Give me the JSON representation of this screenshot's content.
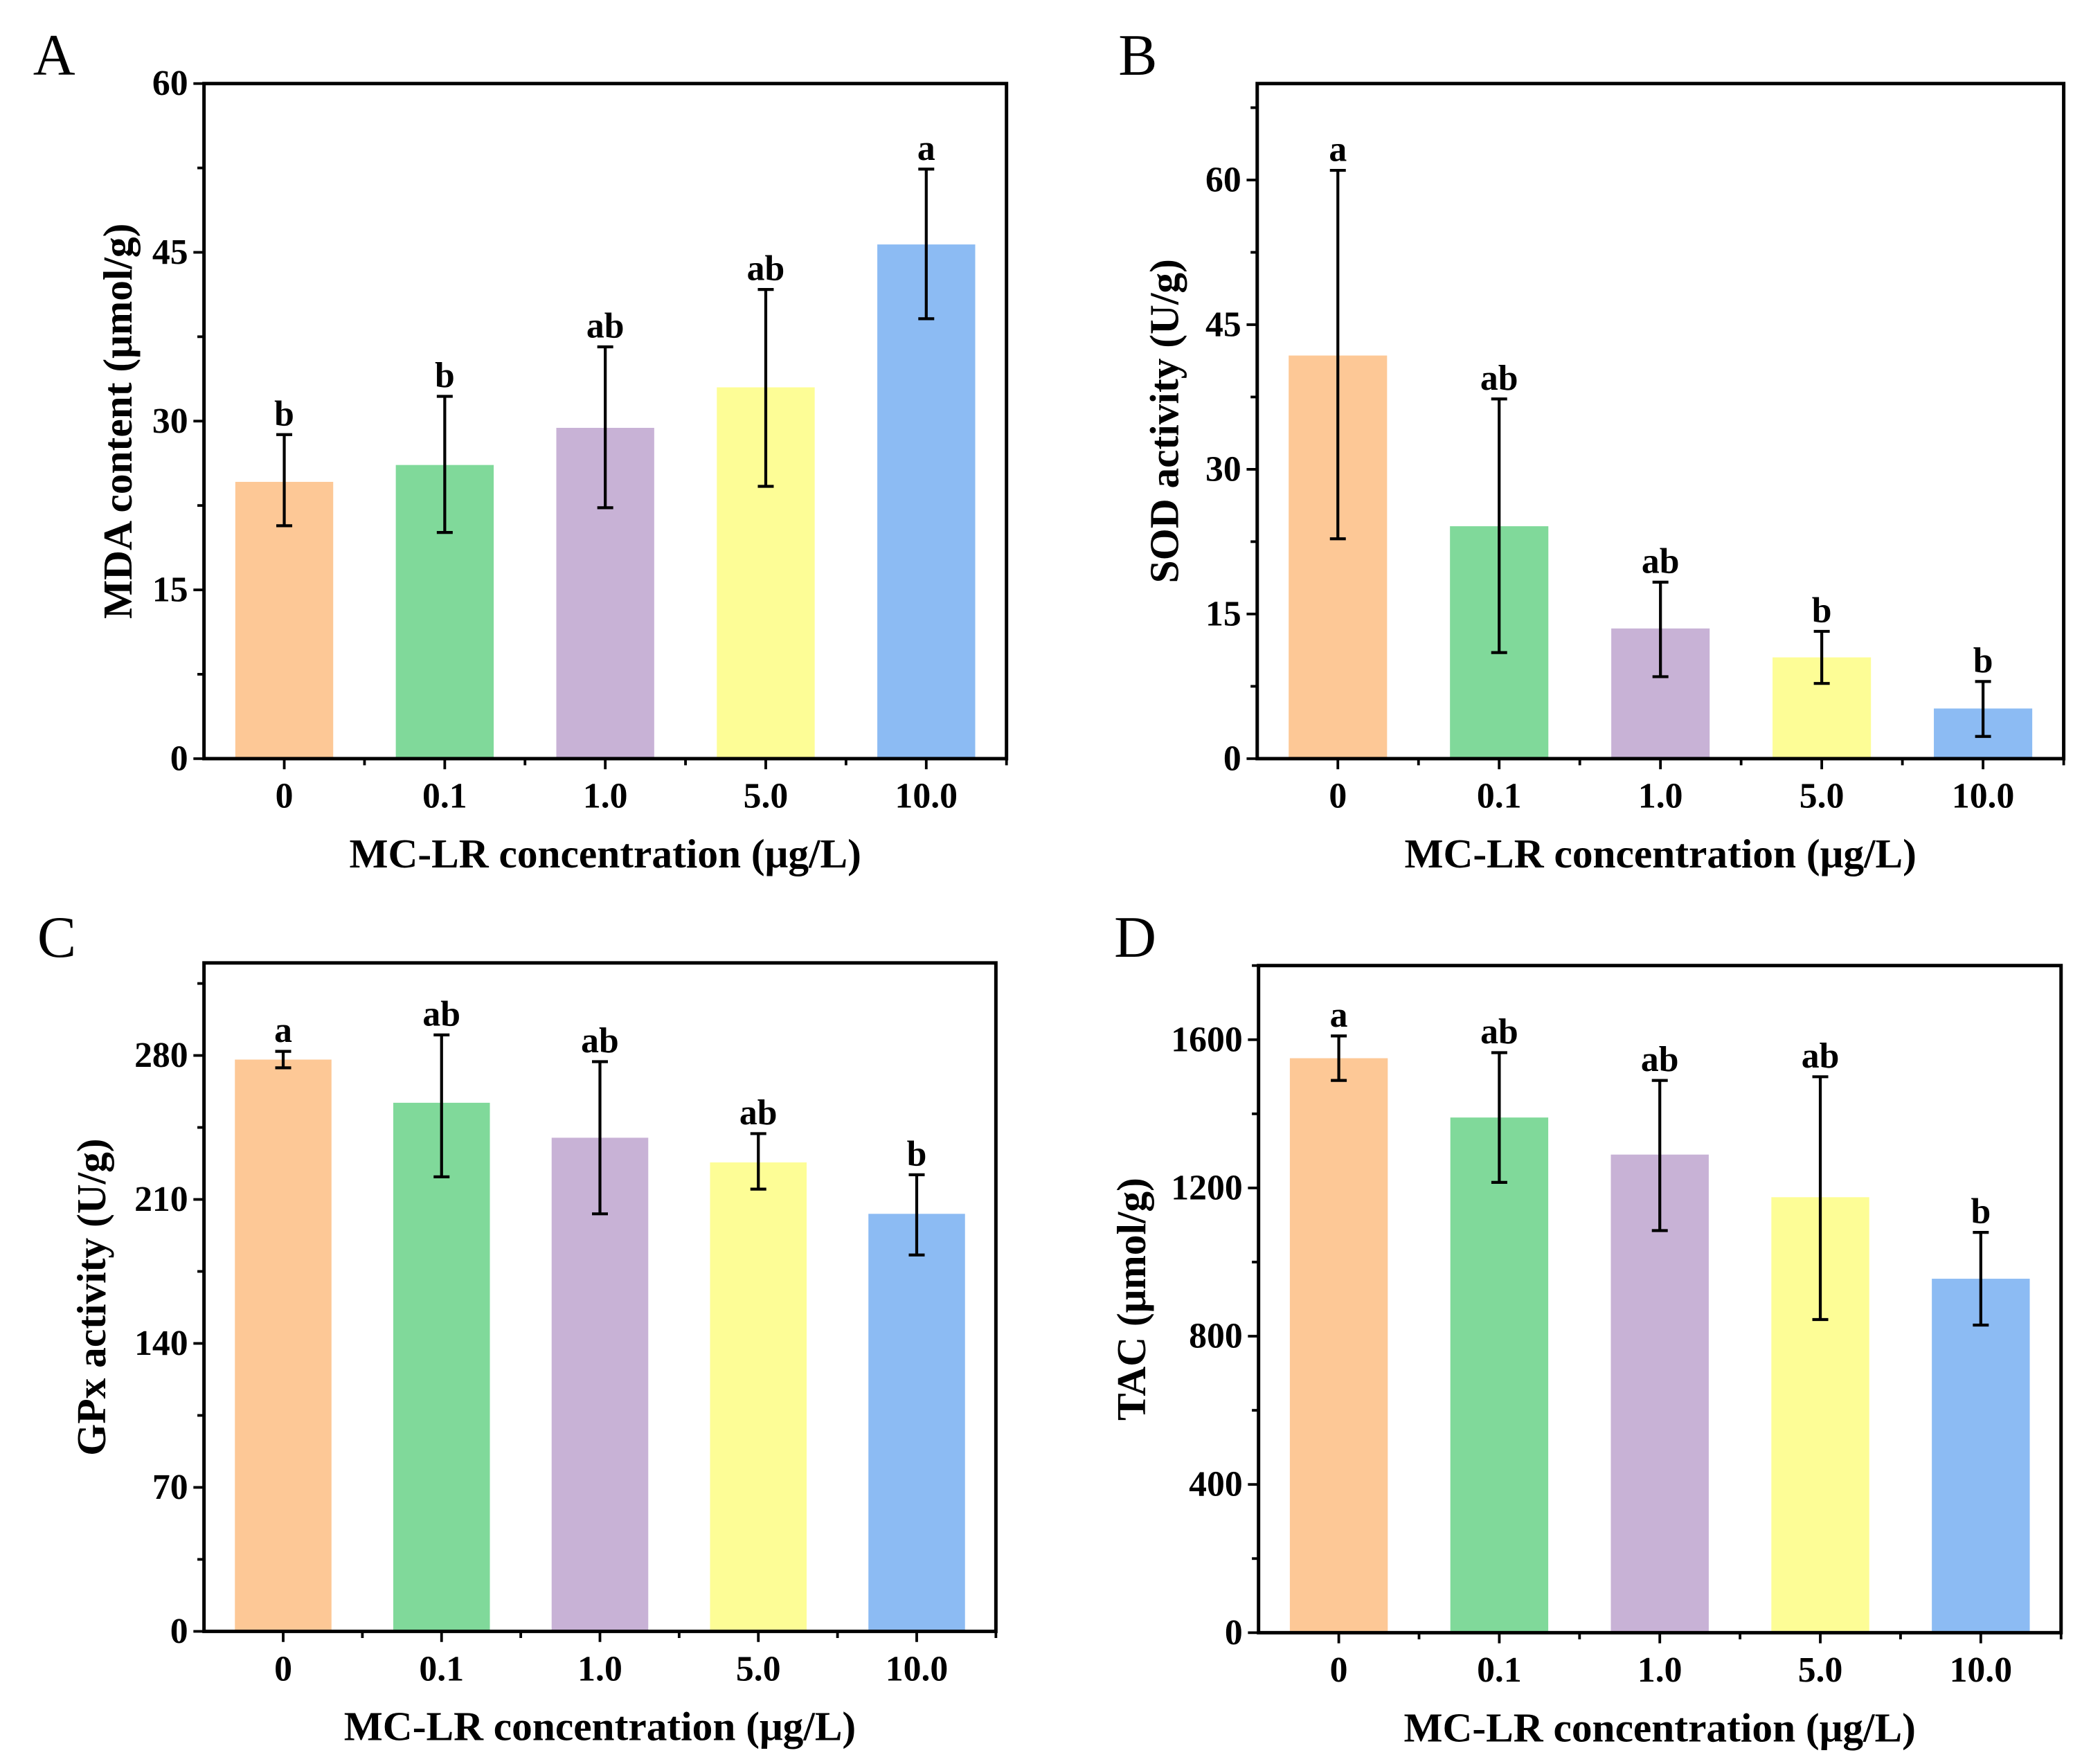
{
  "chart_data": [
    {
      "panel": "A",
      "type": "bar",
      "categories": [
        "0",
        "0.1",
        "1.0",
        "5.0",
        "10.0"
      ],
      "values": [
        24.6,
        26.1,
        29.4,
        33.0,
        45.7
      ],
      "error_low": [
        20.7,
        20.1,
        22.3,
        24.2,
        39.1
      ],
      "error_high": [
        28.8,
        32.2,
        36.6,
        41.7,
        52.4
      ],
      "significance": [
        "b",
        "b",
        "ab",
        "ab",
        "a"
      ],
      "xlabel": "MC-LR concentration (μg/L)",
      "ylabel": "MDA content (μmol/g)",
      "ylim": [
        0,
        60
      ],
      "yticks": [
        0,
        15,
        30,
        45,
        60
      ],
      "yticklabels": [
        "0",
        "15",
        "30",
        "45",
        "60"
      ]
    },
    {
      "panel": "B",
      "type": "bar",
      "categories": [
        "0",
        "0.1",
        "1.0",
        "5.0",
        "10.0"
      ],
      "values": [
        41.8,
        24.1,
        13.5,
        10.5,
        5.2
      ],
      "error_low": [
        22.8,
        11.0,
        8.5,
        7.8,
        2.3
      ],
      "error_high": [
        61.0,
        37.3,
        18.3,
        13.2,
        8.0
      ],
      "significance": [
        "a",
        "ab",
        "ab",
        "b",
        "b"
      ],
      "xlabel": "MC-LR concentration (μg/L)",
      "ylabel": "SOD activity (U/g)",
      "ylim": [
        0,
        70
      ],
      "yticks": [
        0,
        15,
        30,
        45,
        60
      ],
      "yticklabels": [
        "0",
        "15",
        "30",
        "45",
        "60"
      ]
    },
    {
      "panel": "C",
      "type": "bar",
      "categories": [
        "0",
        "0.1",
        "1.0",
        "5.0",
        "10.0"
      ],
      "values": [
        278,
        257,
        240,
        228,
        203
      ],
      "error_low": [
        274,
        221,
        203,
        215,
        183
      ],
      "error_high": [
        282,
        290,
        277,
        242,
        222
      ],
      "significance": [
        "a",
        "ab",
        "ab",
        "ab",
        "b"
      ],
      "xlabel": "MC-LR concentration (μg/L)",
      "ylabel": "GPx activity (U/g)",
      "ylim": [
        0,
        325
      ],
      "yticks": [
        0,
        70,
        140,
        210,
        280
      ],
      "yticklabels": [
        "0",
        "70",
        "140",
        "210",
        "280"
      ]
    },
    {
      "panel": "D",
      "type": "bar",
      "categories": [
        "0",
        "0.1",
        "1.0",
        "5.0",
        "10.0"
      ],
      "values": [
        1550,
        1390,
        1290,
        1175,
        955
      ],
      "error_low": [
        1490,
        1215,
        1085,
        845,
        830
      ],
      "error_high": [
        1610,
        1565,
        1490,
        1500,
        1080
      ],
      "significance": [
        "a",
        "ab",
        "ab",
        "ab",
        "b"
      ],
      "xlabel": "MC-LR concentration (μg/L)",
      "ylabel": "TAC (μmol/g)",
      "ylim": [
        0,
        1800
      ],
      "yticks": [
        0,
        400,
        800,
        1200,
        1600
      ],
      "yticklabels": [
        "0",
        "400",
        "800",
        "1200",
        "1600"
      ]
    }
  ],
  "bar_colors": [
    "#fdc896",
    "#80d99a",
    "#c8b2d6",
    "#fdfd96",
    "#8cbbf3"
  ]
}
